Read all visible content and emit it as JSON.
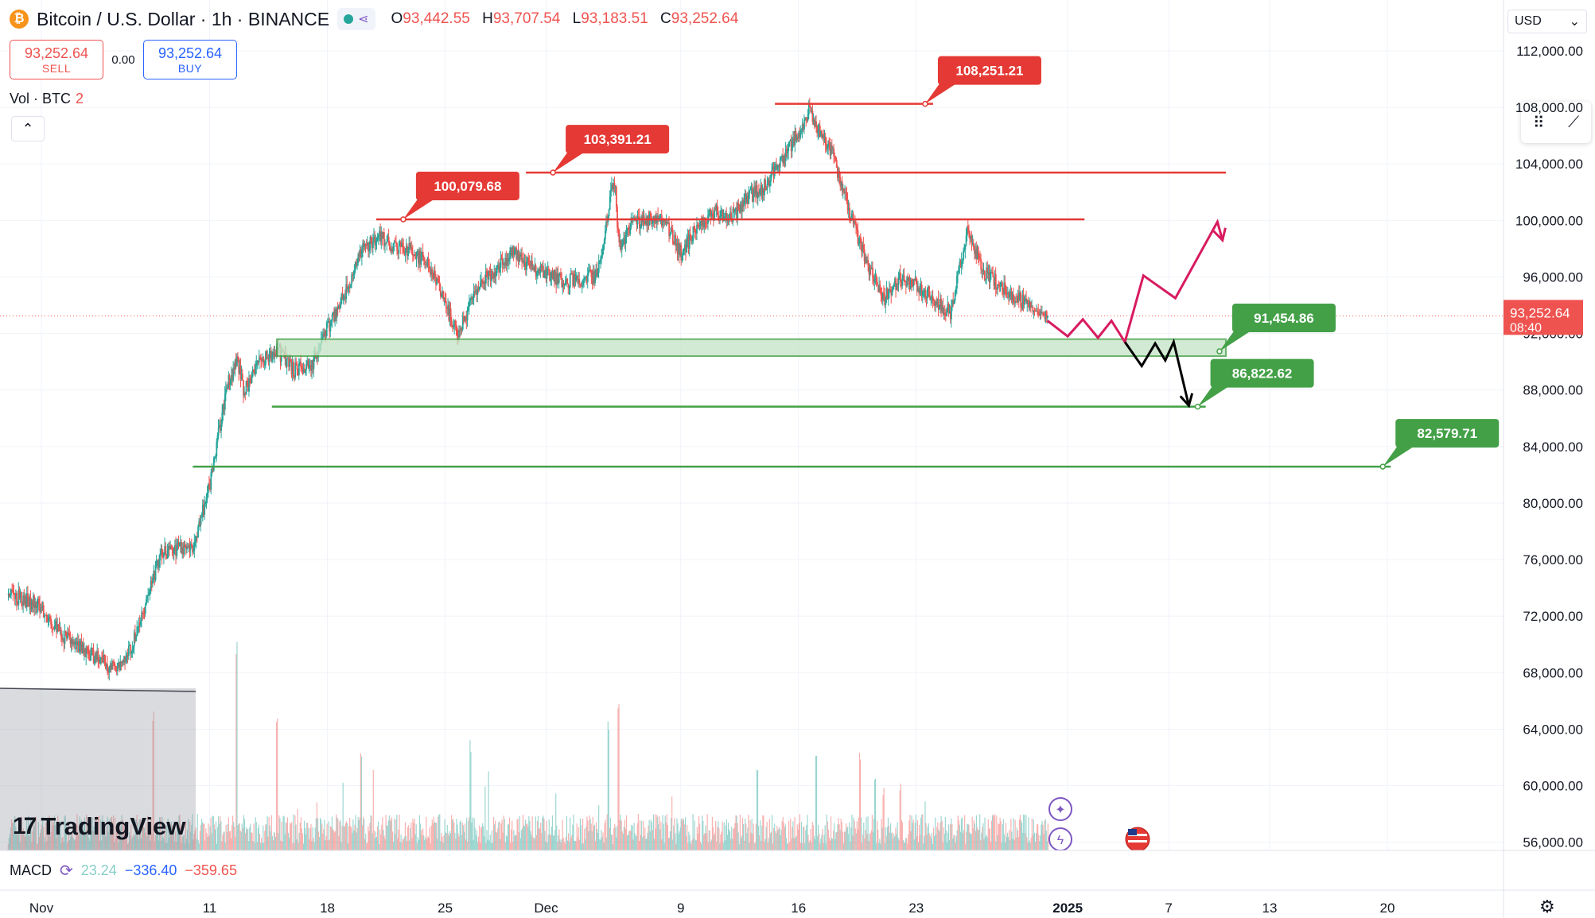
{
  "header": {
    "coin_icon_glyph": "₿",
    "symbol_title": "Bitcoin / U.S. Dollar · 1h · BINANCE",
    "ohlc": {
      "o_label": "O",
      "o": "93,442.55",
      "h_label": "H",
      "h": "93,707.54",
      "l_label": "L",
      "l": "93,183.51",
      "c_label": "C",
      "c": "93,252.64"
    }
  },
  "trade": {
    "sell_price": "93,252.64",
    "sell_label": "SELL",
    "spread": "0.00",
    "buy_price": "93,252.64",
    "buy_label": "BUY"
  },
  "volume_indicator": {
    "label": "Vol · BTC",
    "value": "2"
  },
  "currency_select": {
    "value": "USD"
  },
  "macd": {
    "label": "MACD",
    "v1": "23.24",
    "v2": "−336.40",
    "v3": "−359.65"
  },
  "branding": {
    "name": "TradingView"
  },
  "colors": {
    "up": "#26a69a",
    "down": "#ef5350",
    "resistance": "#e53935",
    "support": "#43a047",
    "forecast_up": "#d81b60",
    "forecast_down": "#000000",
    "grid": "#f0f3fa",
    "axis_text": "#131722"
  },
  "chart_data": {
    "type": "candlestick",
    "symbol": "Bitcoin / U.S. Dollar",
    "timeframe": "1h",
    "exchange": "BINANCE",
    "currency": "USD",
    "y_ticks": [
      "112,000.00",
      "108,000.00",
      "104,000.00",
      "100,000.00",
      "96,000.00",
      "92,000.00",
      "88,000.00",
      "84,000.00",
      "80,000.00",
      "76,000.00",
      "72,000.00",
      "68,000.00",
      "64,000.00",
      "60,000.00",
      "56,000.00"
    ],
    "y_tick_values": [
      112000,
      108000,
      104000,
      100000,
      96000,
      92000,
      88000,
      84000,
      80000,
      76000,
      72000,
      68000,
      64000,
      60000,
      56000
    ],
    "ylim": [
      55200,
      114800
    ],
    "x_ticks": [
      {
        "label": "Nov",
        "t": 1
      },
      {
        "label": "11",
        "t": 11
      },
      {
        "label": "18",
        "t": 18
      },
      {
        "label": "25",
        "t": 25
      },
      {
        "label": "Dec",
        "t": 31
      },
      {
        "label": "9",
        "t": 39
      },
      {
        "label": "16",
        "t": 46
      },
      {
        "label": "23",
        "t": 53
      },
      {
        "label": "2025",
        "t": 62
      },
      {
        "label": "7",
        "t": 68
      },
      {
        "label": "13",
        "t": 74
      },
      {
        "label": "20",
        "t": 81
      }
    ],
    "current_price": {
      "value": 93252.64,
      "label": "93,252.64",
      "countdown": "08:40"
    },
    "price_path": [
      [
        -1,
        73500
      ],
      [
        0,
        73200
      ],
      [
        1,
        72600
      ],
      [
        2,
        70800
      ],
      [
        3,
        69900
      ],
      [
        4,
        69300
      ],
      [
        5,
        68400
      ],
      [
        6,
        68900
      ],
      [
        7,
        72000
      ],
      [
        8,
        76300
      ],
      [
        9,
        76800
      ],
      [
        10,
        76900
      ],
      [
        11,
        81500
      ],
      [
        11.5,
        85000
      ],
      [
        12,
        88200
      ],
      [
        12.6,
        90200
      ],
      [
        13,
        87900
      ],
      [
        14,
        90000
      ],
      [
        15,
        90800
      ],
      [
        16,
        89400
      ],
      [
        17,
        89700
      ],
      [
        18,
        92500
      ],
      [
        19,
        94800
      ],
      [
        20,
        97900
      ],
      [
        21,
        98900
      ],
      [
        22,
        98100
      ],
      [
        23,
        97800
      ],
      [
        24,
        96900
      ],
      [
        25,
        93900
      ],
      [
        25.8,
        91800
      ],
      [
        26,
        92700
      ],
      [
        27,
        95500
      ],
      [
        28,
        96500
      ],
      [
        29,
        97800
      ],
      [
        30,
        96700
      ],
      [
        31,
        96300
      ],
      [
        32,
        95600
      ],
      [
        33,
        95900
      ],
      [
        34,
        96100
      ],
      [
        35,
        103300
      ],
      [
        35.3,
        98000
      ],
      [
        36,
        99800
      ],
      [
        37,
        100100
      ],
      [
        38,
        99900
      ],
      [
        39,
        97600
      ],
      [
        40,
        99700
      ],
      [
        41,
        100600
      ],
      [
        42,
        100200
      ],
      [
        43,
        101700
      ],
      [
        44,
        102400
      ],
      [
        45,
        104500
      ],
      [
        46,
        106200
      ],
      [
        46.6,
        107900
      ],
      [
        47,
        106800
      ],
      [
        48,
        104600
      ],
      [
        49,
        100600
      ],
      [
        50,
        97100
      ],
      [
        51,
        94400
      ],
      [
        52,
        95900
      ],
      [
        53,
        95400
      ],
      [
        54,
        94500
      ],
      [
        55,
        93400
      ],
      [
        56,
        99500
      ],
      [
        57,
        96300
      ],
      [
        58,
        95400
      ],
      [
        59,
        94500
      ],
      [
        60,
        93500
      ],
      [
        60.8,
        93100
      ]
    ],
    "volume_spikes": [
      [
        7.6,
        60
      ],
      [
        12.6,
        90
      ],
      [
        15,
        55
      ],
      [
        20,
        40
      ],
      [
        26.5,
        45
      ],
      [
        34.7,
        55
      ],
      [
        35.3,
        63
      ],
      [
        43.5,
        35
      ],
      [
        47,
        38
      ],
      [
        49.6,
        42
      ],
      [
        50.5,
        30
      ],
      [
        51,
        25
      ],
      [
        52,
        25
      ]
    ],
    "horizontal_levels": [
      {
        "price": 108251.21,
        "label": "108,251.21",
        "kind": "resistance",
        "t_start": 44.6,
        "t_end": 54.0
      },
      {
        "price": 103391.21,
        "label": "103,391.21",
        "kind": "resistance",
        "t_start": 29.8,
        "t_end": 71.4
      },
      {
        "price": 100079.68,
        "label": "100,079.68",
        "kind": "resistance",
        "t_start": 20.9,
        "t_end": 63.0
      },
      {
        "price": 91454.86,
        "label": "91,454.86",
        "kind": "support_zone",
        "zone_low": 90400,
        "zone_high": 91600,
        "t_start": 15.0,
        "t_end": 71.4
      },
      {
        "price": 86822.62,
        "label": "86,822.62",
        "kind": "support",
        "t_start": 14.7,
        "t_end": 70.2
      },
      {
        "price": 82579.71,
        "label": "82,579.71",
        "kind": "support",
        "t_start": 10.0,
        "t_end": 81.2
      }
    ],
    "forecast_paths": [
      {
        "name": "bullish",
        "color": "#d81b60",
        "points": [
          [
            60.8,
            92900
          ],
          [
            62.0,
            91800
          ],
          [
            62.9,
            93000
          ],
          [
            63.8,
            91700
          ],
          [
            64.6,
            92900
          ],
          [
            65.4,
            91400
          ],
          [
            66.5,
            96100
          ],
          [
            68.4,
            94500
          ],
          [
            70.9,
            99900
          ],
          [
            71.2,
            98600
          ]
        ]
      },
      {
        "name": "bearish",
        "color": "#000000",
        "points": [
          [
            65.4,
            91400
          ],
          [
            66.4,
            89700
          ],
          [
            67.2,
            91300
          ],
          [
            67.8,
            90100
          ],
          [
            68.3,
            91400
          ],
          [
            69.2,
            86900
          ]
        ]
      }
    ]
  }
}
